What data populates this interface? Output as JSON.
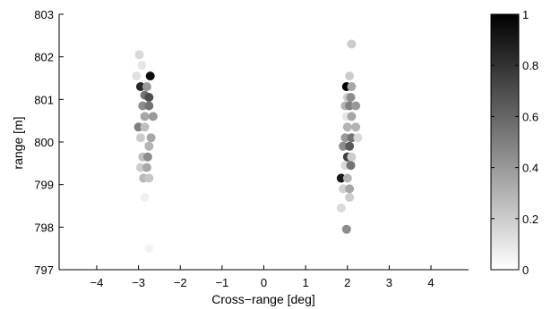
{
  "chart_data": {
    "type": "scatter",
    "xlabel": "Cross−range [deg]",
    "ylabel": "range [m]",
    "xlim": [
      -4.9,
      4.9
    ],
    "ylim": [
      797,
      803
    ],
    "xticks": [
      {
        "v": -4,
        "label": "−4"
      },
      {
        "v": -3,
        "label": "−3"
      },
      {
        "v": -2,
        "label": "−2"
      },
      {
        "v": -1,
        "label": "−1"
      },
      {
        "v": 0,
        "label": "0"
      },
      {
        "v": 1,
        "label": "1"
      },
      {
        "v": 2,
        "label": "2"
      },
      {
        "v": 3,
        "label": "3"
      },
      {
        "v": 4,
        "label": "4"
      }
    ],
    "yticks": [
      {
        "v": 797,
        "label": "797"
      },
      {
        "v": 798,
        "label": "798"
      },
      {
        "v": 799,
        "label": "799"
      },
      {
        "v": 800,
        "label": "800"
      },
      {
        "v": 801,
        "label": "801"
      },
      {
        "v": 802,
        "label": "802"
      },
      {
        "v": 803,
        "label": "803"
      }
    ],
    "grid": false,
    "colormap": "gray (white = 0, black = 1)",
    "colorbar": {
      "range": [
        0,
        1
      ],
      "ticks": [
        {
          "v": 0,
          "label": "0"
        },
        {
          "v": 0.2,
          "label": "0.2"
        },
        {
          "v": 0.4,
          "label": "0.4"
        },
        {
          "v": 0.6,
          "label": "0.6"
        },
        {
          "v": 0.8,
          "label": "0.8"
        },
        {
          "v": 1,
          "label": "1"
        }
      ]
    },
    "points": [
      {
        "x": -2.98,
        "y": 802.05,
        "c": 0.15
      },
      {
        "x": -2.92,
        "y": 801.8,
        "c": 0.1
      },
      {
        "x": -3.05,
        "y": 801.55,
        "c": 0.12
      },
      {
        "x": -2.72,
        "y": 801.55,
        "c": 0.95
      },
      {
        "x": -2.95,
        "y": 801.3,
        "c": 0.85
      },
      {
        "x": -2.8,
        "y": 801.3,
        "c": 0.4
      },
      {
        "x": -2.85,
        "y": 801.1,
        "c": 0.55
      },
      {
        "x": -2.75,
        "y": 801.05,
        "c": 0.7
      },
      {
        "x": -2.9,
        "y": 800.85,
        "c": 0.45
      },
      {
        "x": -2.75,
        "y": 800.85,
        "c": 0.55
      },
      {
        "x": -2.85,
        "y": 800.6,
        "c": 0.35
      },
      {
        "x": -2.65,
        "y": 800.6,
        "c": 0.4
      },
      {
        "x": -3.0,
        "y": 800.35,
        "c": 0.5
      },
      {
        "x": -2.85,
        "y": 800.35,
        "c": 0.25
      },
      {
        "x": -2.95,
        "y": 800.1,
        "c": 0.2
      },
      {
        "x": -2.7,
        "y": 800.1,
        "c": 0.35
      },
      {
        "x": -2.75,
        "y": 799.9,
        "c": 0.3
      },
      {
        "x": -2.9,
        "y": 799.65,
        "c": 0.25
      },
      {
        "x": -2.78,
        "y": 799.65,
        "c": 0.45
      },
      {
        "x": -2.95,
        "y": 799.4,
        "c": 0.2
      },
      {
        "x": -2.8,
        "y": 799.4,
        "c": 0.35
      },
      {
        "x": -2.88,
        "y": 799.15,
        "c": 0.28
      },
      {
        "x": -2.75,
        "y": 799.15,
        "c": 0.22
      },
      {
        "x": -2.85,
        "y": 798.7,
        "c": 0.06
      },
      {
        "x": -2.75,
        "y": 797.5,
        "c": 0.05
      },
      {
        "x": 2.1,
        "y": 802.3,
        "c": 0.2
      },
      {
        "x": 2.05,
        "y": 801.55,
        "c": 0.2
      },
      {
        "x": 1.98,
        "y": 801.3,
        "c": 1.0
      },
      {
        "x": 2.1,
        "y": 801.3,
        "c": 0.35
      },
      {
        "x": 2.0,
        "y": 801.05,
        "c": 0.2
      },
      {
        "x": 2.08,
        "y": 801.05,
        "c": 0.45
      },
      {
        "x": 1.95,
        "y": 800.85,
        "c": 0.3
      },
      {
        "x": 2.05,
        "y": 800.85,
        "c": 0.5
      },
      {
        "x": 2.2,
        "y": 800.85,
        "c": 0.4
      },
      {
        "x": 1.98,
        "y": 800.6,
        "c": 0.1
      },
      {
        "x": 2.1,
        "y": 800.6,
        "c": 0.35
      },
      {
        "x": 2.0,
        "y": 800.35,
        "c": 0.3
      },
      {
        "x": 2.2,
        "y": 800.35,
        "c": 0.3
      },
      {
        "x": 1.95,
        "y": 800.1,
        "c": 0.4
      },
      {
        "x": 2.1,
        "y": 800.1,
        "c": 0.55
      },
      {
        "x": 2.25,
        "y": 800.1,
        "c": 0.15
      },
      {
        "x": 1.9,
        "y": 799.9,
        "c": 0.45
      },
      {
        "x": 2.05,
        "y": 799.9,
        "c": 0.65
      },
      {
        "x": 2.0,
        "y": 799.65,
        "c": 0.75
      },
      {
        "x": 2.1,
        "y": 799.65,
        "c": 0.2
      },
      {
        "x": 1.95,
        "y": 799.45,
        "c": 0.15
      },
      {
        "x": 2.08,
        "y": 799.45,
        "c": 0.55
      },
      {
        "x": 1.85,
        "y": 799.15,
        "c": 0.9
      },
      {
        "x": 2.0,
        "y": 799.15,
        "c": 0.3
      },
      {
        "x": 1.9,
        "y": 798.9,
        "c": 0.18
      },
      {
        "x": 2.05,
        "y": 798.9,
        "c": 0.35
      },
      {
        "x": 2.05,
        "y": 798.7,
        "c": 0.2
      },
      {
        "x": 1.85,
        "y": 798.45,
        "c": 0.15
      },
      {
        "x": 1.98,
        "y": 797.95,
        "c": 0.45
      }
    ]
  }
}
